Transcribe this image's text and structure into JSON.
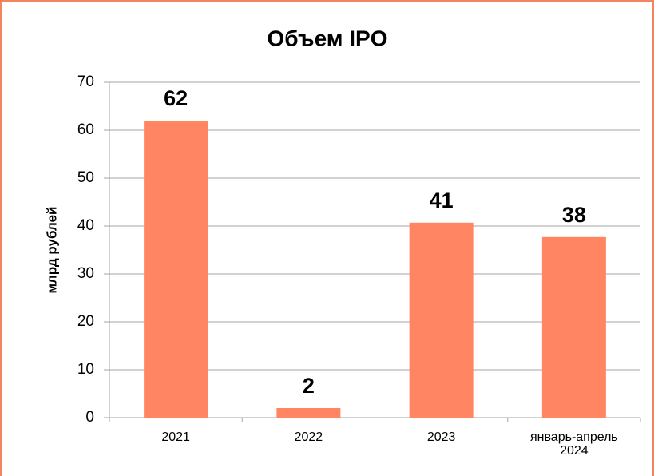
{
  "chart_data": {
    "type": "bar",
    "title": "Объем IPO",
    "y_label": "млрд рублей",
    "categories": [
      "2021",
      "2022",
      "2023",
      "январь-апрель 2024"
    ],
    "values": [
      62,
      2,
      40.7,
      37.7
    ],
    "value_labels": [
      "62",
      "2",
      "41",
      "38"
    ],
    "color": "#ff8563",
    "ylim": [
      0,
      70
    ],
    "yticks": [
      0,
      10,
      20,
      30,
      40,
      50,
      60,
      70
    ],
    "grid": true
  }
}
